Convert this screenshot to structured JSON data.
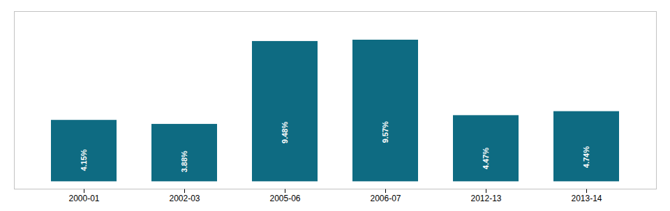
{
  "chart_data": {
    "type": "bar",
    "categories": [
      "2000-01",
      "2002-03",
      "2005-06",
      "2006-07",
      "2012-13",
      "2013-14"
    ],
    "values": [
      4.15,
      3.88,
      9.48,
      9.57,
      4.47,
      4.74
    ],
    "value_labels": [
      "4.15%",
      "3.88%",
      "9.48%",
      "9.57%",
      "4.47%",
      "4.74%"
    ],
    "data_labels": true,
    "color": "#0e6b82",
    "ylim": [
      -0.5,
      11.5
    ],
    "tick_labels": "x",
    "grid": false
  }
}
